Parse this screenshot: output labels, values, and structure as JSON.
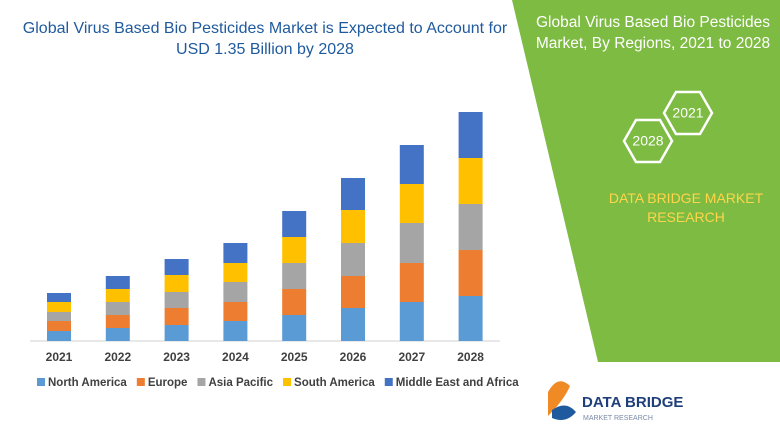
{
  "chart_data": {
    "type": "stacked_bar",
    "title": "Global Virus Based Bio Pesticides Market is Expected to Account for USD 1.35 Billion by 2028",
    "categories": [
      "2021",
      "2022",
      "2023",
      "2024",
      "2025",
      "2026",
      "2027",
      "2028"
    ],
    "series": [
      {
        "name": "North America",
        "color": "#5b9bd5",
        "values": [
          10,
          13,
          16,
          20,
          26,
          33,
          39,
          45
        ]
      },
      {
        "name": "Europe",
        "color": "#ed7d31",
        "values": [
          10,
          13,
          17,
          19,
          26,
          32,
          39,
          46
        ]
      },
      {
        "name": "Asia Pacific",
        "color": "#a5a5a5",
        "values": [
          9,
          13,
          16,
          20,
          26,
          33,
          40,
          46
        ]
      },
      {
        "name": "South America",
        "color": "#ffc000",
        "values": [
          10,
          13,
          17,
          19,
          26,
          33,
          39,
          46
        ]
      },
      {
        "name": "Middle East and Africa",
        "color": "#4472c4",
        "values": [
          9,
          13,
          16,
          20,
          26,
          32,
          39,
          46
        ]
      }
    ]
  },
  "panel": {
    "title": "Global Virus Based Bio Pesticides Market, By Regions, 2021 to 2028",
    "hexagons": [
      "2021",
      "2028"
    ],
    "brand": "DATA BRIDGE MARKET RESEARCH"
  },
  "logo": {
    "name": "DATA BRIDGE",
    "tagline": "MARKET RESEARCH"
  }
}
